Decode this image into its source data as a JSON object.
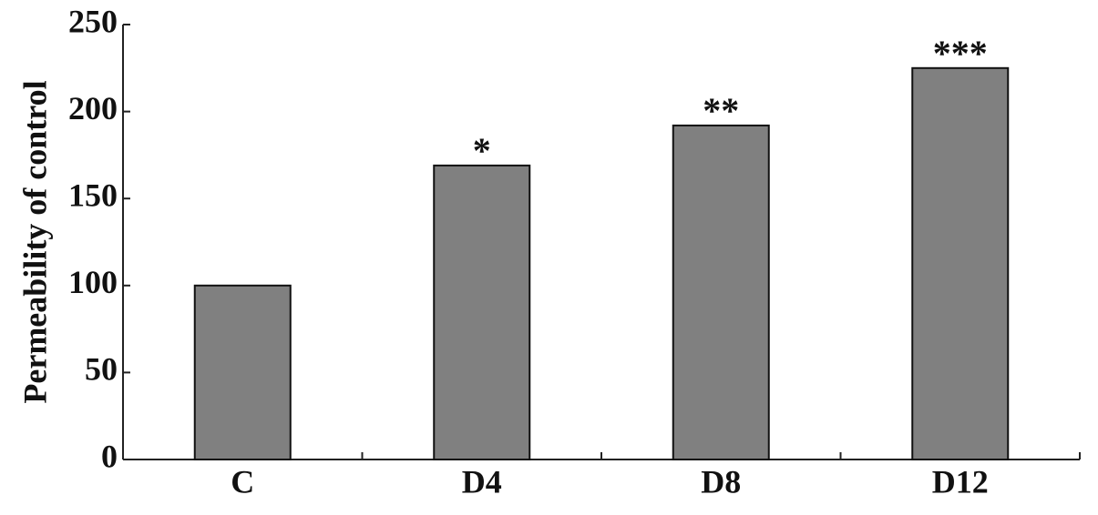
{
  "chart_data": {
    "type": "bar",
    "y_label": "Permeability of control",
    "categories": [
      "C",
      "D4",
      "D8",
      "D12"
    ],
    "values": [
      100,
      169,
      192,
      225
    ],
    "annotations": [
      null,
      "*",
      "**",
      "***"
    ],
    "color": "#808080",
    "ylim": [
      0,
      250
    ],
    "yticks": [
      0,
      50,
      100,
      150,
      200,
      250
    ],
    "grid": false
  }
}
